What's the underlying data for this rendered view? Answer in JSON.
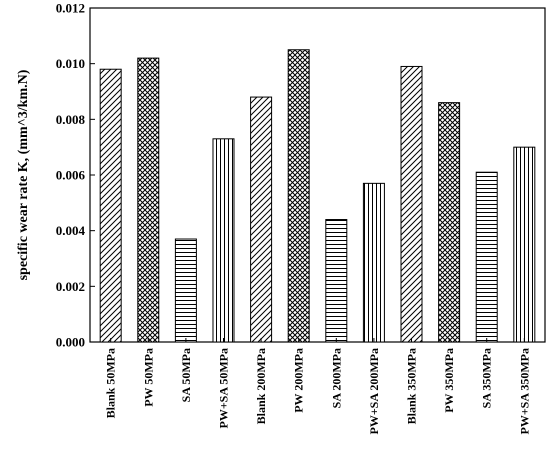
{
  "chart_data": {
    "type": "bar",
    "ylabel": "specific wear rate K, (mm^3/km.N)",
    "xlabel": "",
    "title": "",
    "ylim": [
      0,
      0.012
    ],
    "yticks": [
      "0.000",
      "0.002",
      "0.004",
      "0.006",
      "0.008",
      "0.010",
      "0.012"
    ],
    "categories": [
      "Blank 50MPa",
      "PW 50MPa",
      "SA 50MPa",
      "PW+SA 50MPa",
      "Blank 200MPa",
      "PW 200MPa",
      "SA 200MPa",
      "PW+SA 200MPa",
      "Blank 350MPa",
      "PW 350MPa",
      "SA 350MPa",
      "PW+SA 350MPa"
    ],
    "values": [
      0.0098,
      0.0102,
      0.0037,
      0.0073,
      0.0088,
      0.0105,
      0.0044,
      0.0057,
      0.0099,
      0.0086,
      0.0061,
      0.007
    ],
    "patterns": [
      "diagonal",
      "crosshatch",
      "horizontal",
      "vertical",
      "diagonal",
      "crosshatch",
      "horizontal",
      "vertical",
      "diagonal",
      "crosshatch",
      "horizontal",
      "vertical"
    ],
    "grid": false,
    "legend": "none"
  }
}
